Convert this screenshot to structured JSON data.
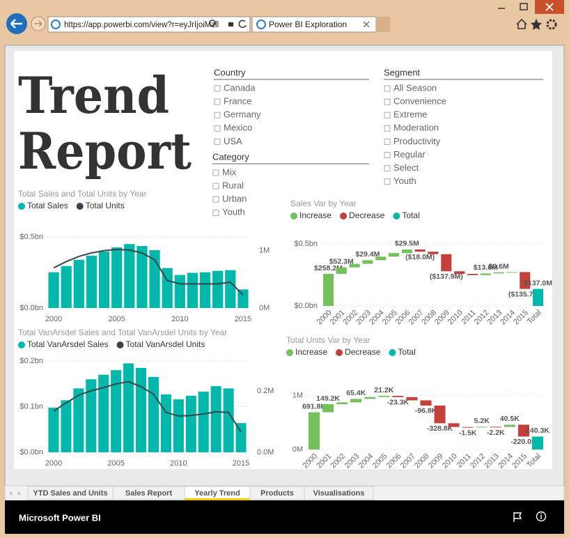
{
  "browser": {
    "url": "https://app.powerbi.com/view?r=eyJrIjoiMzll",
    "tab_title": "Power BI Exploration"
  },
  "report": {
    "title": [
      "Trend",
      "Report"
    ],
    "slicers": [
      {
        "title": "Country",
        "items": [
          "Canada",
          "France",
          "Germany",
          "Mexico",
          "USA"
        ]
      },
      {
        "title": "Category",
        "items": [
          "Mix",
          "Rural",
          "Urban",
          "Youth"
        ]
      },
      {
        "title": "Segment",
        "items": [
          "All Season",
          "Convenience",
          "Extreme",
          "Moderation",
          "Productivity",
          "Regular",
          "Select",
          "Youth"
        ]
      }
    ],
    "charts": [
      {
        "type": "combo",
        "title": "Total Sales and Total Units by Year",
        "x": [
          2000,
          2001,
          2002,
          2003,
          2004,
          2005,
          2006,
          2007,
          2008,
          2009,
          2010,
          2011,
          2012,
          2013,
          2014,
          2015
        ],
        "xlim": [
          1999.5,
          2015.5
        ],
        "xticks": [
          2000,
          2005,
          2010,
          2015
        ],
        "series": [
          {
            "name": "Total Sales",
            "type": "bar",
            "color": "#01b8aa",
            "values": [
              0.252,
              0.296,
              0.34,
              0.369,
              0.398,
              0.427,
              0.451,
              0.437,
              0.408,
              0.282,
              0.233,
              0.248,
              0.252,
              0.262,
              0.267,
              0.131
            ]
          },
          {
            "name": "Total Units",
            "type": "line",
            "axis": "y2",
            "color": "#374649",
            "values": [
              0.7,
              0.81,
              0.9,
              0.96,
              1.0,
              1.02,
              1.01,
              0.96,
              0.84,
              0.48,
              0.42,
              0.42,
              0.42,
              0.42,
              0.45,
              0.23
            ]
          }
        ],
        "ylim": [
          0,
          0.55
        ],
        "yticks": [
          {
            "value": 0,
            "label": "$0.0bn"
          },
          {
            "value": 0.5,
            "label": "$0.5bn"
          }
        ],
        "y2lim": [
          0,
          1.36
        ],
        "y2ticks": [
          {
            "value": 0,
            "label": "0M"
          },
          {
            "value": 1,
            "label": "1M"
          }
        ],
        "grid": true
      },
      {
        "type": "combo",
        "title": "Total VanArsdel Sales and Total VanArsdel Units by Year",
        "x": [
          2000,
          2001,
          2002,
          2003,
          2004,
          2005,
          2006,
          2007,
          2008,
          2009,
          2010,
          2011,
          2012,
          2013,
          2014,
          2015
        ],
        "xlim": [
          1999.5,
          2015.5
        ],
        "xticks": [
          2000,
          2005,
          2010,
          2015
        ],
        "series": [
          {
            "name": "Total VanArsdel Sales",
            "type": "bar",
            "color": "#01b8aa",
            "values": [
              0.098,
              0.114,
              0.14,
              0.16,
              0.17,
              0.18,
              0.195,
              0.185,
              0.165,
              0.127,
              0.116,
              0.124,
              0.133,
              0.145,
              0.14,
              0.064
            ]
          },
          {
            "name": "Total VanArsdel Units",
            "type": "line",
            "axis": "y2",
            "color": "#374649",
            "values": [
              0.134,
              0.161,
              0.186,
              0.2,
              0.211,
              0.223,
              0.23,
              0.214,
              0.189,
              0.13,
              0.118,
              0.12,
              0.125,
              0.132,
              0.13,
              0.066
            ]
          }
        ],
        "ylim": [
          0,
          0.22
        ],
        "yticks": [
          {
            "value": 0,
            "label": "$0.0bn"
          },
          {
            "value": 0.1,
            "label": "$0.1bn"
          },
          {
            "value": 0.2,
            "label": "$0.2bn"
          }
        ],
        "y2lim": [
          0,
          0.327
        ],
        "y2ticks": [
          {
            "value": 0,
            "label": "0.0M"
          },
          {
            "value": 0.2,
            "label": "0.2M"
          }
        ],
        "grid": true
      },
      {
        "type": "waterfall",
        "title": "Sales Var by Year",
        "legend": [
          {
            "name": "Increase",
            "color": "#72c15a"
          },
          {
            "name": "Decrease",
            "color": "#c4403b"
          },
          {
            "name": "Total",
            "color": "#01b8aa"
          }
        ],
        "categories": [
          "2000",
          "2001",
          "2002",
          "2003",
          "2004",
          "2005",
          "2006",
          "2007",
          "2008",
          "2009",
          "2010",
          "2011",
          "2012",
          "2013",
          "2014",
          "2015"
        ],
        "values": [
          0.2582,
          0.0523,
          0.0285,
          0.0294,
          0.0285,
          0.0286,
          0.0295,
          -0.018,
          -0.02,
          -0.1379,
          -0.021,
          -0.01,
          0.0136,
          0.0096,
          0.0014,
          -0.1357
        ],
        "value_labels": [
          "$258.2M",
          "$52.3M",
          null,
          "$29.4M",
          null,
          null,
          "$29.5M",
          "($18.0M)",
          null,
          "($137.9M)",
          null,
          null,
          "$13.6M",
          "$9.6M",
          null,
          "($135.7M)"
        ],
        "total": {
          "category": "Total",
          "value": 0.137,
          "value_label": "$137.0M"
        },
        "ylim": [
          0,
          0.55
        ],
        "yticks": [
          {
            "value": 0,
            "label": "$0.0bn"
          },
          {
            "value": 0.5,
            "label": "$0.5bn"
          }
        ],
        "grid": true
      },
      {
        "type": "waterfall",
        "title": "Total Units Var by Year",
        "legend": [
          {
            "name": "Increase",
            "color": "#72c15a"
          },
          {
            "name": "Decrease",
            "color": "#c4403b"
          },
          {
            "name": "Total",
            "color": "#01b8aa"
          }
        ],
        "categories": [
          "2000",
          "2001",
          "2002",
          "2003",
          "2004",
          "2005",
          "2006",
          "2007",
          "2008",
          "2009",
          "2010",
          "2011",
          "2012",
          "2013",
          "2014",
          "2015"
        ],
        "values": [
          0.6918,
          0.1492,
          0.034,
          0.0654,
          0.0344,
          0.0212,
          -0.0233,
          -0.06,
          -0.0968,
          -0.3288,
          -0.0688,
          -0.0015,
          0.0052,
          -0.0022,
          0.0405,
          -0.22
        ],
        "value_labels": [
          "691.8K",
          "149.2K",
          null,
          "65.4K",
          null,
          "21.2K",
          "-23.3K",
          null,
          "-96.8K",
          "-328.8K",
          null,
          "-1.5K",
          "5.2K",
          "-2.2K",
          "40.5K",
          "-220.0K"
        ],
        "total": {
          "category": "Total",
          "value": 0.2403,
          "value_label": "240.3K"
        },
        "ylim": [
          0,
          1.1
        ],
        "yticks": [
          {
            "value": 0,
            "label": "0M"
          },
          {
            "value": 1,
            "label": "1M"
          }
        ],
        "grid": true
      }
    ]
  },
  "tabs": [
    {
      "label": "YTD Sales and Units",
      "selected": false
    },
    {
      "label": "Sales Report",
      "selected": false
    },
    {
      "label": "Yearly Trend",
      "selected": true
    },
    {
      "label": "Products",
      "selected": false
    },
    {
      "label": "Visualisations",
      "selected": false
    }
  ],
  "footer": {
    "brand": "Microsoft Power BI"
  }
}
